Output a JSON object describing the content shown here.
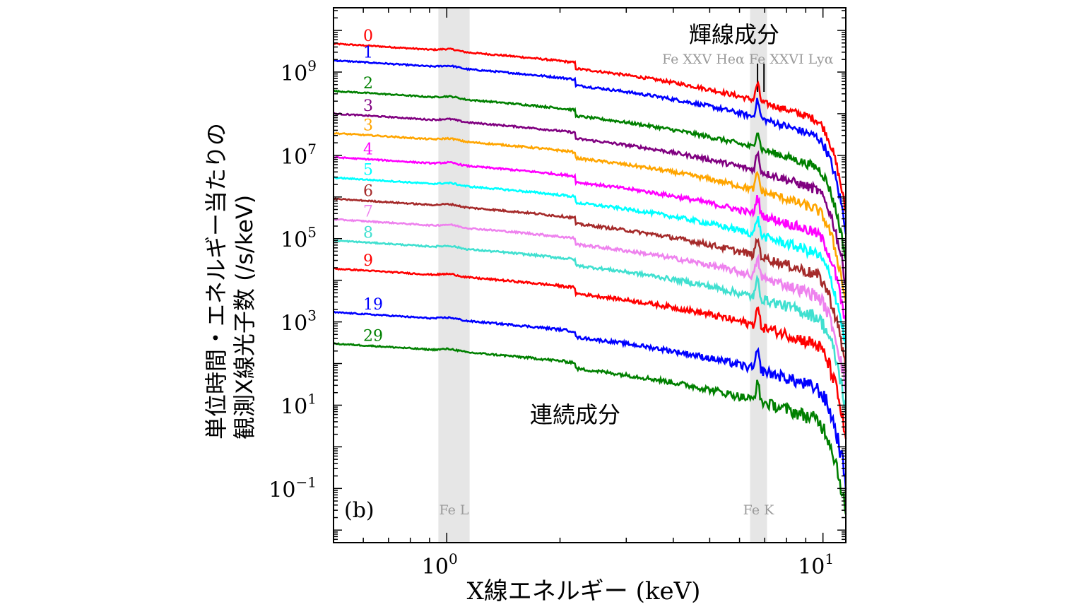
{
  "chart_data": {
    "type": "line",
    "panel_label": "(b)",
    "xlabel": "X線エネルギー (keV)",
    "ylabel": [
      "単位時間・エネルギー当たりの",
      "観測X線光子数 (/s/keV)"
    ],
    "x_scale": "log",
    "y_scale": "log",
    "xlim": [
      0.5,
      11.5
    ],
    "ylim": [
      0.005,
      35000000000
    ],
    "x_ticks": [
      {
        "value": 1,
        "base": "10",
        "exp": "0"
      },
      {
        "value": 10,
        "base": "10",
        "exp": "1"
      }
    ],
    "y_ticks": [
      {
        "value": 0.1,
        "base": "10",
        "exp": "−1"
      },
      {
        "value": 10,
        "base": "10",
        "exp": "1"
      },
      {
        "value": 1000,
        "base": "10",
        "exp": "3"
      },
      {
        "value": 100000,
        "base": "10",
        "exp": "5"
      },
      {
        "value": 10000000,
        "base": "10",
        "exp": "7"
      },
      {
        "value": 1000000000,
        "base": "10",
        "exp": "9"
      }
    ],
    "shaded_bands": [
      {
        "label": "Fe L",
        "x_range": [
          0.95,
          1.15
        ]
      },
      {
        "label": "Fe K",
        "x_range": [
          6.4,
          7.1
        ]
      }
    ],
    "line_markers": {
      "labels": "Fe XXV Heα  Fe XXVI Lyα",
      "x": [
        6.7,
        6.97
      ]
    },
    "annotations": {
      "line_component": "輝線成分",
      "continuum": "連続成分"
    },
    "series": [
      {
        "label": "0",
        "color": "#ff0000",
        "value_at_0_5keV": 4800000000.0
      },
      {
        "label": "1",
        "color": "#0000ff",
        "value_at_0_5keV": 1900000000.0
      },
      {
        "label": "2",
        "color": "#008000",
        "value_at_0_5keV": 350000000.0
      },
      {
        "label": "3",
        "color": "#800080",
        "value_at_0_5keV": 100000000.0
      },
      {
        "label": "3",
        "color": "#ffa500",
        "value_at_0_5keV": 34000000.0
      },
      {
        "label": "4",
        "color": "#ff00ff",
        "value_at_0_5keV": 9000000.0
      },
      {
        "label": "5",
        "color": "#00ffff",
        "value_at_0_5keV": 2900000.0
      },
      {
        "label": "6",
        "color": "#a52a2a",
        "value_at_0_5keV": 900000.0
      },
      {
        "label": "7",
        "color": "#ee82ee",
        "value_at_0_5keV": 290000.0
      },
      {
        "label": "8",
        "color": "#40e0d0",
        "value_at_0_5keV": 90000.0
      },
      {
        "label": "9",
        "color": "#ff0000",
        "value_at_0_5keV": 19000.0
      },
      {
        "label": "19",
        "color": "#0000ff",
        "value_at_0_5keV": 1700.0
      },
      {
        "label": "29",
        "color": "#008000",
        "value_at_0_5keV": 300.0
      }
    ]
  }
}
